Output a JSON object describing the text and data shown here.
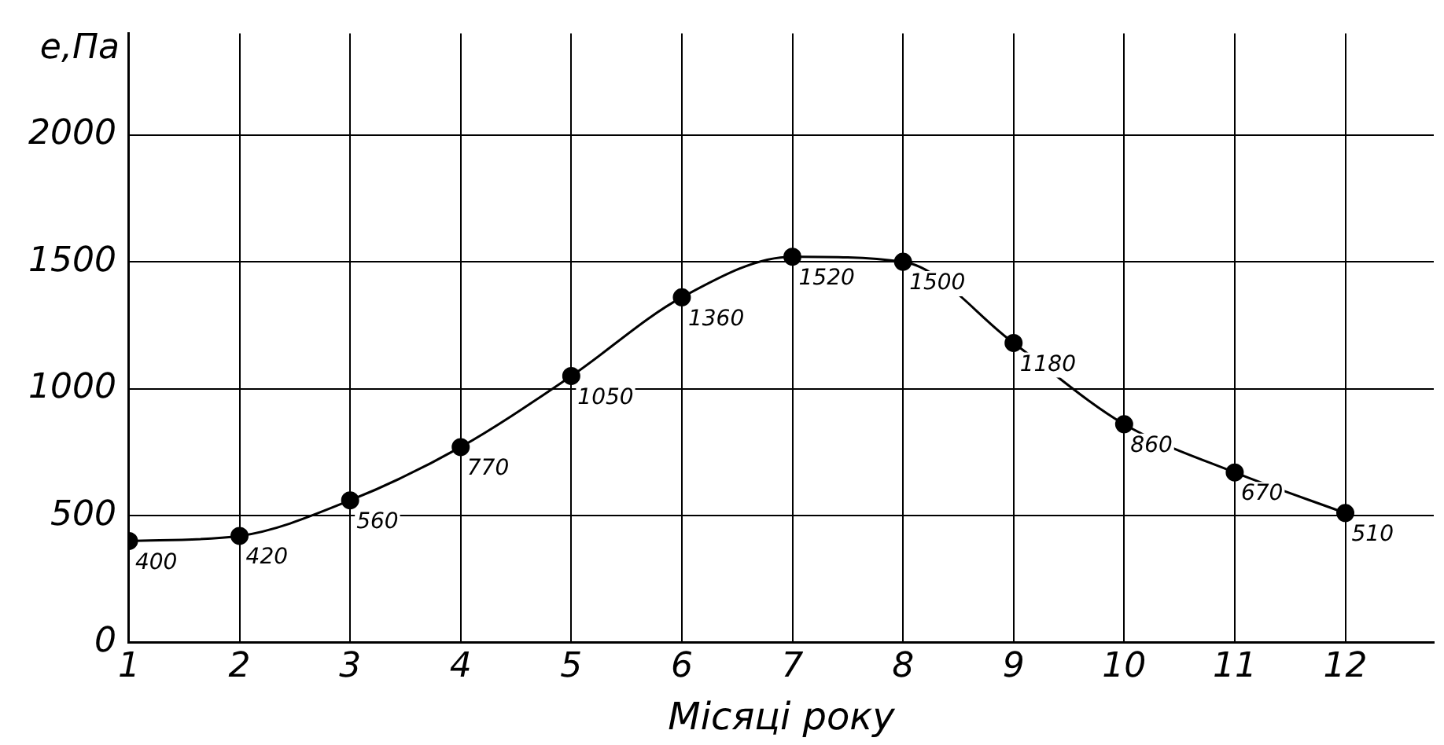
{
  "chart_data": {
    "type": "line",
    "xlabel": "Місяці року",
    "ylabel": "e,Па",
    "x": [
      1,
      2,
      3,
      4,
      5,
      6,
      7,
      8,
      9,
      10,
      11,
      12
    ],
    "series": [
      {
        "color": "#000000",
        "values": [
          400,
          420,
          560,
          770,
          1050,
          1360,
          1520,
          1500,
          1180,
          860,
          670,
          510
        ]
      }
    ],
    "xlim": [
      1,
      12.8
    ],
    "xticks": [
      1,
      2,
      3,
      4,
      5,
      6,
      7,
      8,
      9,
      10,
      11,
      12
    ],
    "ylim": [
      0,
      2400
    ],
    "yticks": [
      0,
      500,
      1000,
      1500,
      2000
    ],
    "grid": true,
    "marker": "circle",
    "line_style": "solid",
    "data_labels": true,
    "legend": false
  }
}
